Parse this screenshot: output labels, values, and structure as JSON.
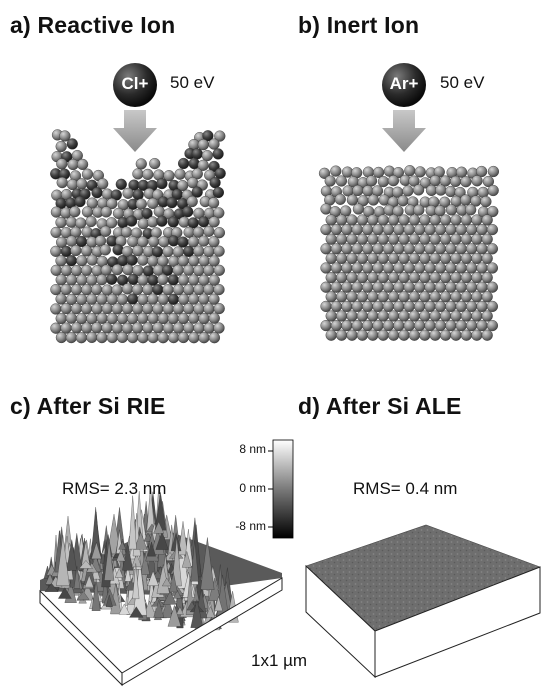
{
  "panels": {
    "a": {
      "label": "a)  Reactive Ion",
      "ion": "Cl+",
      "energy": "50 eV"
    },
    "b": {
      "label": "b)  Inert Ion",
      "ion": "Ar+",
      "energy": "50 eV"
    },
    "c": {
      "label": "c)  After Si RIE",
      "rms": "RMS= 2.3 nm"
    },
    "d": {
      "label": "d)  After Si ALE",
      "rms": "RMS= 0.4 nm"
    }
  },
  "colorbar": {
    "ticks": [
      "8 nm",
      "0 nm",
      "-8 nm"
    ]
  },
  "scan_size": "1x1 µm",
  "colors": {
    "atom": "#8e8e8e",
    "chlorine": "#474747",
    "arrow": "#9a9a9a"
  }
}
